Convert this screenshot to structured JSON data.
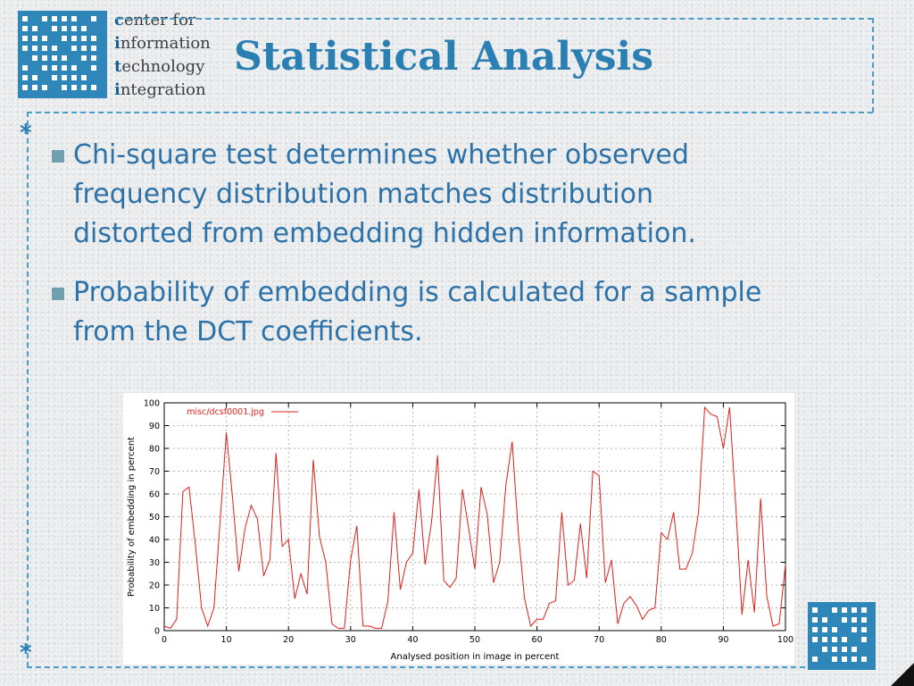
{
  "header": {
    "org_lines": [
      {
        "initial": "c",
        "rest": "enter for"
      },
      {
        "initial": "i",
        "rest": "nformation"
      },
      {
        "initial": "t",
        "rest": "echnology"
      },
      {
        "initial": "i",
        "rest": "ntegration"
      }
    ],
    "title": "Statistical Analysis"
  },
  "decor": {
    "star": "*"
  },
  "bullets": [
    {
      "lines": [
        "Chi-square test determines whether observed",
        "frequency distribution matches distribution",
        "distorted from embedding hidden information."
      ]
    },
    {
      "lines": [
        "Probability of embedding is calculated for a sample",
        "from the DCT coefficients."
      ]
    }
  ],
  "colors": {
    "accent": "#2a7fb3",
    "text": "#2c72a8",
    "series": "#e0201b",
    "logo": "#2f86b8"
  },
  "chart_data": {
    "type": "line",
    "title": "",
    "xlabel": "Analysed position in image in percent",
    "ylabel": "Probability of embedding in percent",
    "xlim": [
      0,
      100
    ],
    "ylim": [
      0,
      100
    ],
    "xticks": [
      0,
      10,
      20,
      30,
      40,
      50,
      60,
      70,
      80,
      90,
      100
    ],
    "yticks": [
      0,
      10,
      20,
      30,
      40,
      50,
      60,
      70,
      80,
      90,
      100
    ],
    "grid": true,
    "legend": "top-left",
    "series": [
      {
        "name": "misc/dcsf0001.jpg",
        "color": "#e0201b",
        "x": [
          0,
          1,
          2,
          3,
          4,
          5,
          6,
          7,
          8,
          9,
          10,
          11,
          12,
          13,
          14,
          15,
          16,
          17,
          18,
          19,
          20,
          21,
          22,
          23,
          24,
          25,
          26,
          27,
          28,
          29,
          30,
          31,
          32,
          33,
          34,
          35,
          36,
          37,
          38,
          39,
          40,
          41,
          42,
          43,
          44,
          45,
          46,
          47,
          48,
          49,
          50,
          51,
          52,
          53,
          54,
          55,
          56,
          57,
          58,
          59,
          60,
          61,
          62,
          63,
          64,
          65,
          66,
          67,
          68,
          69,
          70,
          71,
          72,
          73,
          74,
          75,
          76,
          77,
          78,
          79,
          80,
          81,
          82,
          83,
          84,
          85,
          86,
          87,
          88,
          89,
          90,
          91,
          92,
          93,
          94,
          95,
          96,
          97,
          98,
          99,
          100
        ],
        "y": [
          2,
          1,
          5,
          61,
          63,
          38,
          10,
          2,
          10,
          48,
          87,
          58,
          26,
          45,
          55,
          49,
          24,
          31,
          78,
          37,
          40,
          14,
          25,
          16,
          75,
          41,
          30,
          3,
          1,
          1,
          31,
          46,
          2,
          2,
          1,
          1,
          13,
          52,
          18,
          30,
          34,
          62,
          29,
          47,
          77,
          22,
          19,
          23,
          62,
          45,
          27,
          63,
          51,
          21,
          30,
          64,
          83,
          43,
          14,
          2,
          5,
          5,
          12,
          13,
          52,
          20,
          22,
          47,
          23,
          70,
          68,
          21,
          31,
          3,
          12,
          15,
          11,
          5,
          9,
          10,
          43,
          40,
          52,
          27,
          27,
          34,
          52,
          98,
          95,
          94,
          80,
          98,
          55,
          7,
          31,
          8,
          58,
          15,
          2,
          3,
          29
        ]
      }
    ]
  }
}
